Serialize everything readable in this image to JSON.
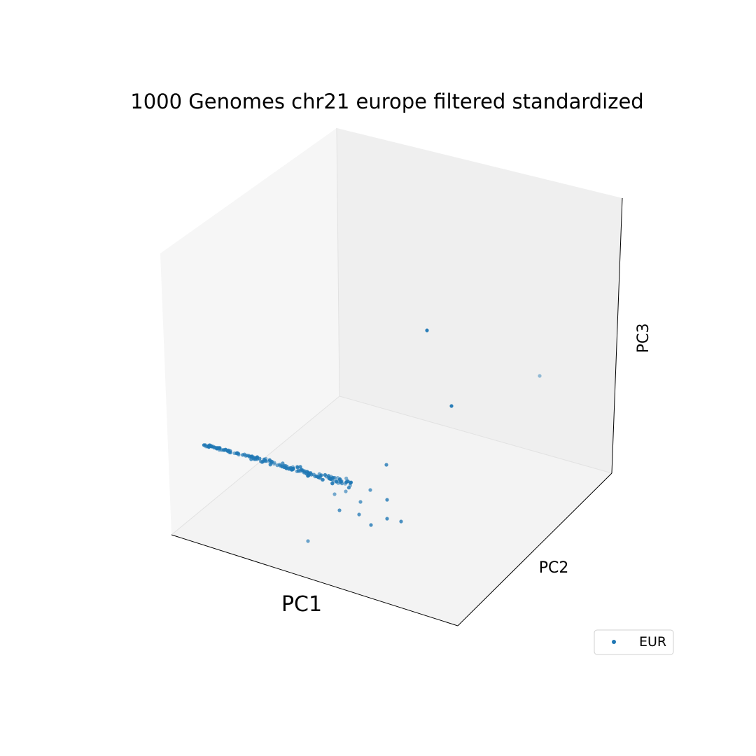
{
  "chart_data": {
    "type": "scatter",
    "projection": "3d",
    "title": "1000 Genomes chr21 europe filtered standardized",
    "xlabel": "PC1",
    "ylabel": "PC2",
    "zlabel": "PC3",
    "ticks": "hidden",
    "grid": false,
    "legend": {
      "placement": "lower-right",
      "entries": [
        "EUR"
      ]
    },
    "series": [
      {
        "name": "EUR",
        "color": "#1f77b4",
        "points_shown": 190,
        "cluster_description": "dense elongated cloud with a few scattered outliers, including three isolated points in the upper region"
      }
    ]
  }
}
